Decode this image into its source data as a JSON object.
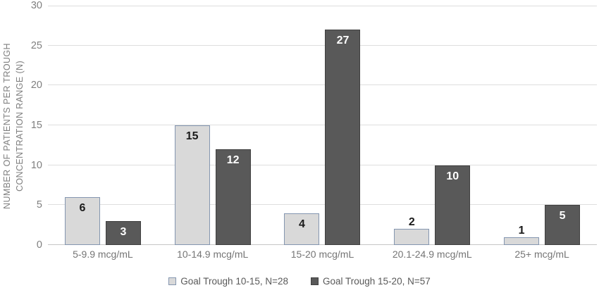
{
  "chart_data": {
    "type": "bar",
    "title": "",
    "categories": [
      "5-9.9 mcg/mL",
      "10-14.9 mcg/mL",
      "15-20 mcg/mL",
      "20.1-24.9 mcg/mL",
      "25+ mcg/mL"
    ],
    "series": [
      {
        "name": "Goal Trough 10-15, N=28",
        "values": [
          6,
          15,
          4,
          2,
          1
        ],
        "fill": "#d9d9d9",
        "border": "#8496b0",
        "label_color": "#1a1a1a"
      },
      {
        "name": "Goal Trough 15-20, N=57",
        "values": [
          3,
          12,
          27,
          10,
          5
        ],
        "fill": "#595959",
        "border": "#404040",
        "label_color": "#ffffff"
      }
    ],
    "ylabel_line1": "NUMBER OF PATIENTS PER TROUGH",
    "ylabel_line2": "CONCENTRATION RANGE (N)",
    "xlabel": "",
    "y_ticks": [
      0,
      5,
      10,
      15,
      20,
      25,
      30
    ],
    "ylim": [
      0,
      30
    ],
    "grid": true,
    "legend_position": "bottom",
    "colors": {
      "gridline": "#dedede",
      "axis_line": "#c6c6c6",
      "tick_label": "#7f7f7f",
      "axis_title": "#7f7f7f",
      "category_label": "#757575",
      "legend_text": "#595959",
      "background": "#ffffff"
    }
  }
}
